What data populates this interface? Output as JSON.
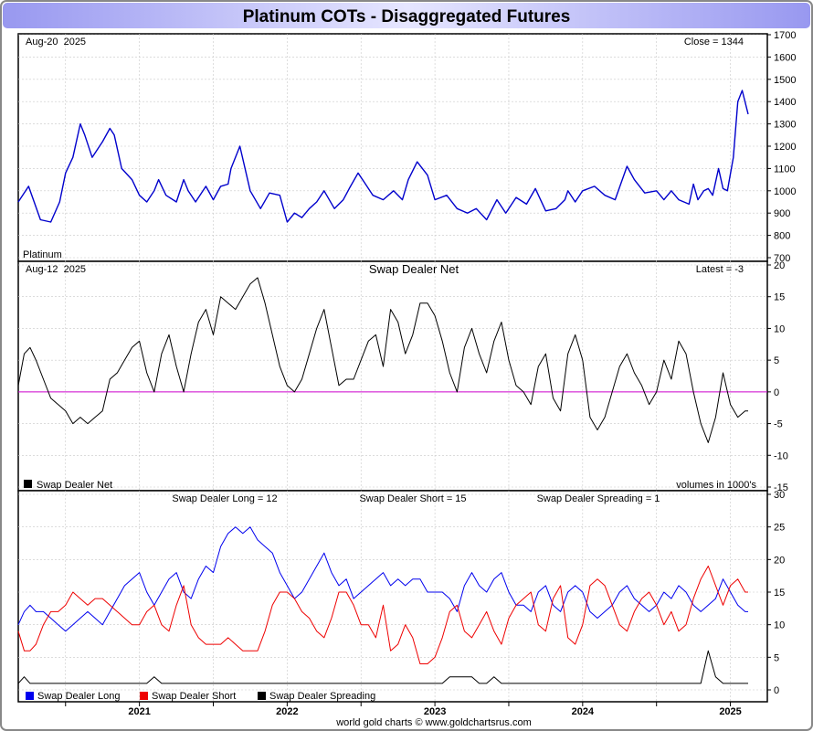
{
  "page": {
    "title": "Platinum COTs - Disaggregated Futures",
    "footer": "world gold charts © www.goldchartsrus.com",
    "x_axis_years": [
      "2021",
      "2022",
      "2023",
      "2024",
      "2025"
    ]
  },
  "colors": {
    "price": "#0000cc",
    "net": "#000000",
    "zero_line": "#cc00cc",
    "long": "#0000ee",
    "short": "#ee0000",
    "spreading": "#000000",
    "title_gradient_start": "#9898f0",
    "title_gradient_end": "#e6e6ff"
  },
  "chart_data": [
    {
      "type": "line",
      "panel": "price",
      "date_label": "Aug-20  2025",
      "info_label": "Close = 1344",
      "corner_label": "Platinum",
      "x_range": [
        2020.68,
        2025.75
      ],
      "ylim": [
        700,
        1700
      ],
      "y_ticks": [
        700,
        800,
        900,
        1000,
        1100,
        1200,
        1300,
        1400,
        1500,
        1600,
        1700
      ],
      "series": [
        {
          "x": [
            2020.68,
            2020.75,
            2020.83,
            2020.9,
            2020.96,
            2021.0,
            2021.05,
            2021.1,
            2021.13,
            2021.18,
            2021.25,
            2021.3,
            2021.33,
            2021.38,
            2021.45,
            2021.5,
            2021.55,
            2021.6,
            2021.63,
            2021.68,
            2021.75,
            2021.8,
            2021.83,
            2021.88,
            2021.95,
            2022.0,
            2022.05,
            2022.1,
            2022.12,
            2022.18,
            2022.25,
            2022.32,
            2022.38,
            2022.45,
            2022.5,
            2022.55,
            2022.6,
            2022.65,
            2022.7,
            2022.75,
            2022.82,
            2022.88,
            2022.92,
            2022.98,
            2023.02,
            2023.08,
            2023.15,
            2023.22,
            2023.28,
            2023.32,
            2023.38,
            2023.45,
            2023.5,
            2023.58,
            2023.65,
            2023.72,
            2023.78,
            2023.85,
            2023.92,
            2023.98,
            2024.05,
            2024.12,
            2024.18,
            2024.25,
            2024.32,
            2024.38,
            2024.4,
            2024.45,
            2024.5,
            2024.58,
            2024.65,
            2024.72,
            2024.8,
            2024.85,
            2024.92,
            2025.0,
            2025.05,
            2025.1,
            2025.15,
            2025.22,
            2025.25,
            2025.28,
            2025.32,
            2025.35,
            2025.38,
            2025.42,
            2025.45,
            2025.48,
            2025.52,
            2025.55,
            2025.58,
            2025.62
          ],
          "values": [
            950,
            1020,
            870,
            860,
            950,
            1080,
            1150,
            1300,
            1250,
            1150,
            1220,
            1280,
            1250,
            1100,
            1050,
            980,
            950,
            1000,
            1050,
            980,
            950,
            1050,
            1000,
            950,
            1020,
            960,
            1020,
            1030,
            1100,
            1200,
            1000,
            920,
            990,
            980,
            860,
            900,
            880,
            920,
            950,
            1000,
            920,
            960,
            1010,
            1080,
            1040,
            980,
            960,
            1000,
            960,
            1050,
            1130,
            1070,
            960,
            980,
            920,
            900,
            920,
            870,
            960,
            900,
            970,
            940,
            1010,
            910,
            920,
            960,
            1000,
            950,
            1000,
            1020,
            980,
            960,
            1110,
            1050,
            990,
            1000,
            960,
            1000,
            960,
            940,
            1030,
            960,
            1000,
            1010,
            980,
            1100,
            1010,
            1000,
            1150,
            1400,
            1450,
            1344
          ]
        }
      ]
    },
    {
      "type": "line",
      "panel": "net",
      "date_label": "Aug-12  2025",
      "title": "Swap Dealer Net",
      "info_label": "Latest = -3",
      "units_label": "volumes in 1000's",
      "ylim": [
        -15,
        20
      ],
      "y_ticks": [
        -15,
        -10,
        -5,
        0,
        5,
        10,
        15,
        20
      ],
      "series": [
        {
          "name": "Swap Dealer Net",
          "x": [
            2020.68,
            2020.72,
            2020.76,
            2020.8,
            2020.85,
            2020.9,
            2020.95,
            2021.0,
            2021.05,
            2021.1,
            2021.15,
            2021.2,
            2021.25,
            2021.3,
            2021.35,
            2021.4,
            2021.45,
            2021.5,
            2021.55,
            2021.6,
            2021.65,
            2021.7,
            2021.75,
            2021.8,
            2021.85,
            2021.9,
            2021.95,
            2022.0,
            2022.05,
            2022.1,
            2022.15,
            2022.2,
            2022.25,
            2022.3,
            2022.35,
            2022.4,
            2022.45,
            2022.5,
            2022.55,
            2022.6,
            2022.65,
            2022.7,
            2022.75,
            2022.8,
            2022.85,
            2022.9,
            2022.95,
            2023.0,
            2023.05,
            2023.1,
            2023.15,
            2023.2,
            2023.25,
            2023.3,
            2023.35,
            2023.4,
            2023.45,
            2023.5,
            2023.55,
            2023.6,
            2023.65,
            2023.7,
            2023.75,
            2023.8,
            2023.85,
            2023.9,
            2023.95,
            2024.0,
            2024.05,
            2024.1,
            2024.15,
            2024.2,
            2024.25,
            2024.3,
            2024.35,
            2024.4,
            2024.45,
            2024.5,
            2024.55,
            2024.6,
            2024.65,
            2024.7,
            2024.75,
            2024.8,
            2024.85,
            2024.9,
            2024.95,
            2025.0,
            2025.05,
            2025.1,
            2025.15,
            2025.2,
            2025.25,
            2025.3,
            2025.35,
            2025.4,
            2025.45,
            2025.5,
            2025.55,
            2025.6,
            2025.62
          ],
          "values": [
            1,
            6,
            7,
            5,
            2,
            -1,
            -2,
            -3,
            -5,
            -4,
            -5,
            -4,
            -3,
            2,
            3,
            5,
            7,
            8,
            3,
            0,
            6,
            9,
            4,
            0,
            6,
            11,
            13,
            9,
            15,
            14,
            13,
            15,
            17,
            18,
            14,
            9,
            4,
            1,
            0,
            2,
            6,
            10,
            13,
            7,
            1,
            2,
            2,
            5,
            8,
            9,
            4,
            13,
            11,
            6,
            9,
            14,
            14,
            12,
            8,
            3,
            0,
            7,
            10,
            6,
            3,
            8,
            11,
            5,
            1,
            0,
            -2,
            4,
            6,
            -1,
            -3,
            6,
            9,
            5,
            -4,
            -6,
            -4,
            0,
            4,
            6,
            3,
            1,
            -2,
            0,
            5,
            2,
            8,
            6,
            0,
            -5,
            -8,
            -4,
            3,
            -2,
            -4,
            -3,
            -3
          ]
        }
      ]
    },
    {
      "type": "line",
      "panel": "positions",
      "labels_top": [
        "Swap Dealer Long = 12",
        "Swap Dealer Short = 15",
        "Swap Dealer Spreading = 1"
      ],
      "ylim": [
        0,
        30
      ],
      "y_ticks": [
        0,
        5,
        10,
        15,
        20,
        25,
        30
      ],
      "x": [
        2020.68,
        2020.72,
        2020.76,
        2020.8,
        2020.85,
        2020.9,
        2020.95,
        2021.0,
        2021.05,
        2021.1,
        2021.15,
        2021.2,
        2021.25,
        2021.3,
        2021.35,
        2021.4,
        2021.45,
        2021.5,
        2021.55,
        2021.6,
        2021.65,
        2021.7,
        2021.75,
        2021.8,
        2021.85,
        2021.9,
        2021.95,
        2022.0,
        2022.05,
        2022.1,
        2022.15,
        2022.2,
        2022.25,
        2022.3,
        2022.35,
        2022.4,
        2022.45,
        2022.5,
        2022.55,
        2022.6,
        2022.65,
        2022.7,
        2022.75,
        2022.8,
        2022.85,
        2022.9,
        2022.95,
        2023.0,
        2023.05,
        2023.1,
        2023.15,
        2023.2,
        2023.25,
        2023.3,
        2023.35,
        2023.4,
        2023.45,
        2023.5,
        2023.55,
        2023.6,
        2023.65,
        2023.7,
        2023.75,
        2023.8,
        2023.85,
        2023.9,
        2023.95,
        2024.0,
        2024.05,
        2024.1,
        2024.15,
        2024.2,
        2024.25,
        2024.3,
        2024.35,
        2024.4,
        2024.45,
        2024.5,
        2024.55,
        2024.6,
        2024.65,
        2024.7,
        2024.75,
        2024.8,
        2024.85,
        2024.9,
        2024.95,
        2025.0,
        2025.05,
        2025.1,
        2025.15,
        2025.2,
        2025.25,
        2025.3,
        2025.35,
        2025.4,
        2025.45,
        2025.5,
        2025.55,
        2025.6,
        2025.62
      ],
      "series": [
        {
          "name": "Swap Dealer Long",
          "values": [
            10,
            12,
            13,
            12,
            12,
            11,
            10,
            9,
            10,
            11,
            12,
            11,
            10,
            12,
            14,
            16,
            17,
            18,
            15,
            13,
            15,
            17,
            18,
            15,
            14,
            17,
            19,
            18,
            22,
            24,
            25,
            24,
            25,
            23,
            22,
            21,
            18,
            16,
            14,
            15,
            17,
            19,
            21,
            18,
            16,
            17,
            14,
            15,
            16,
            17,
            18,
            16,
            17,
            16,
            17,
            17,
            15,
            15,
            15,
            14,
            12,
            16,
            18,
            16,
            15,
            17,
            18,
            15,
            13,
            13,
            12,
            15,
            16,
            13,
            12,
            15,
            16,
            15,
            12,
            11,
            12,
            13,
            15,
            16,
            14,
            13,
            12,
            13,
            15,
            14,
            16,
            15,
            13,
            12,
            13,
            14,
            17,
            15,
            13,
            12,
            12
          ]
        },
        {
          "name": "Swap Dealer Short",
          "values": [
            9,
            6,
            6,
            7,
            10,
            12,
            12,
            13,
            15,
            14,
            13,
            14,
            14,
            13,
            12,
            11,
            10,
            10,
            12,
            13,
            10,
            9,
            13,
            16,
            10,
            8,
            7,
            7,
            7,
            8,
            7,
            6,
            6,
            6,
            9,
            13,
            15,
            15,
            14,
            12,
            11,
            9,
            8,
            11,
            15,
            15,
            13,
            10,
            10,
            8,
            13,
            6,
            7,
            10,
            8,
            4,
            4,
            5,
            8,
            12,
            13,
            9,
            8,
            10,
            12,
            9,
            7,
            11,
            13,
            14,
            15,
            10,
            9,
            14,
            16,
            8,
            7,
            10,
            16,
            17,
            16,
            13,
            10,
            9,
            12,
            14,
            15,
            13,
            10,
            12,
            9,
            10,
            14,
            17,
            19,
            16,
            13,
            16,
            17,
            15,
            15
          ]
        },
        {
          "name": "Swap Dealer Spreading",
          "values": [
            1,
            2,
            1,
            1,
            1,
            1,
            1,
            1,
            1,
            1,
            1,
            1,
            1,
            1,
            1,
            1,
            1,
            1,
            1,
            2,
            1,
            1,
            1,
            1,
            1,
            1,
            1,
            1,
            1,
            1,
            1,
            1,
            1,
            1,
            1,
            1,
            1,
            1,
            1,
            1,
            1,
            1,
            1,
            1,
            1,
            1,
            1,
            1,
            1,
            1,
            1,
            1,
            1,
            1,
            1,
            1,
            1,
            1,
            1,
            2,
            2,
            2,
            2,
            1,
            1,
            2,
            1,
            1,
            1,
            1,
            1,
            1,
            1,
            1,
            1,
            1,
            1,
            1,
            1,
            1,
            1,
            1,
            1,
            1,
            1,
            1,
            1,
            1,
            1,
            1,
            1,
            1,
            1,
            1,
            6,
            2,
            1,
            1,
            1,
            1,
            1
          ]
        }
      ]
    }
  ]
}
